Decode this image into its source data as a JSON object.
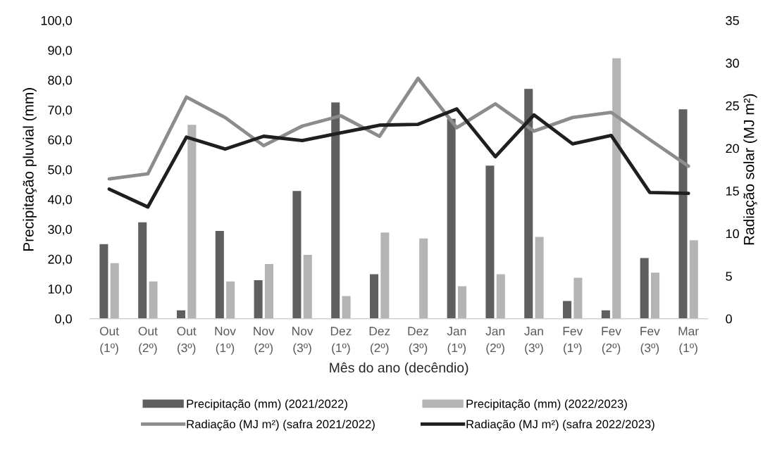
{
  "chart_data": {
    "type": "bar",
    "xlabel": "Mês do ano (decêndio)",
    "ylabel": "Precipitação pluvial (mm)",
    "y2label": "Radiação solar (MJ m²)",
    "categories": [
      "Out\n(1º)",
      "Out\n(2º)",
      "Out\n(3º)",
      "Nov\n(1º)",
      "Nov\n(2º)",
      "Nov\n(3º)",
      "Dez\n(1º)",
      "Dez\n(2º)",
      "Dez\n(3º)",
      "Jan\n(1º)",
      "Jan\n(2º)",
      "Jan\n(3º)",
      "Fev\n(1º)",
      "Fev\n(2º)",
      "Fev\n(3º)",
      "Mar\n(1º)"
    ],
    "series": [
      {
        "name": "Precipitação (mm) (2021/2022)",
        "color": "#5f5f5f",
        "values": [
          25.0,
          32.3,
          2.8,
          29.4,
          12.9,
          42.8,
          72.5,
          14.9,
          null,
          67.0,
          51.3,
          77.0,
          5.9,
          2.8,
          20.3,
          70.2
        ]
      },
      {
        "name": "Precipitação (mm) (2022/2023)",
        "color": "#b4b4b4",
        "values": [
          18.6,
          12.5,
          65.0,
          12.5,
          18.3,
          21.4,
          7.6,
          28.9,
          26.9,
          10.9,
          14.9,
          27.4,
          13.7,
          87.3,
          15.4,
          26.3
        ]
      },
      {
        "name": "Radiação (MJ m²) (safra 2021/2022)",
        "type": "line",
        "axis": "y2",
        "color": "#8c8c8c",
        "values": [
          16.4,
          17.0,
          26.0,
          23.6,
          20.3,
          22.6,
          23.8,
          21.4,
          28.2,
          22.4,
          25.2,
          22.0,
          23.6,
          24.2,
          21.0,
          17.9
        ]
      },
      {
        "name": "Radiação (MJ m²) (safra 2022/2023)",
        "type": "line",
        "axis": "y2",
        "color": "#1f1f1f",
        "values": [
          15.2,
          13.1,
          21.3,
          19.9,
          21.4,
          20.9,
          21.8,
          22.7,
          22.8,
          24.6,
          19.0,
          23.9,
          20.5,
          21.5,
          14.8,
          14.7
        ]
      }
    ],
    "ylim": [
      0,
      100
    ],
    "yticks": [
      {
        "value": 0,
        "label": "0,0"
      },
      {
        "value": 10,
        "label": "10,0"
      },
      {
        "value": 20,
        "label": "20,0"
      },
      {
        "value": 30,
        "label": "30,0"
      },
      {
        "value": 40,
        "label": "40,0"
      },
      {
        "value": 50,
        "label": "50,0"
      },
      {
        "value": 60,
        "label": "60,0"
      },
      {
        "value": 70,
        "label": "70,0"
      },
      {
        "value": 80,
        "label": "80,0"
      },
      {
        "value": 90,
        "label": "90,0"
      },
      {
        "value": 100,
        "label": "100,0"
      }
    ],
    "y2lim": [
      0,
      35
    ],
    "y2ticks": [
      0,
      5,
      10,
      15,
      20,
      25,
      30,
      35
    ],
    "grid": false,
    "legend": "bottom",
    "marker": "none",
    "line_style": "solid"
  }
}
